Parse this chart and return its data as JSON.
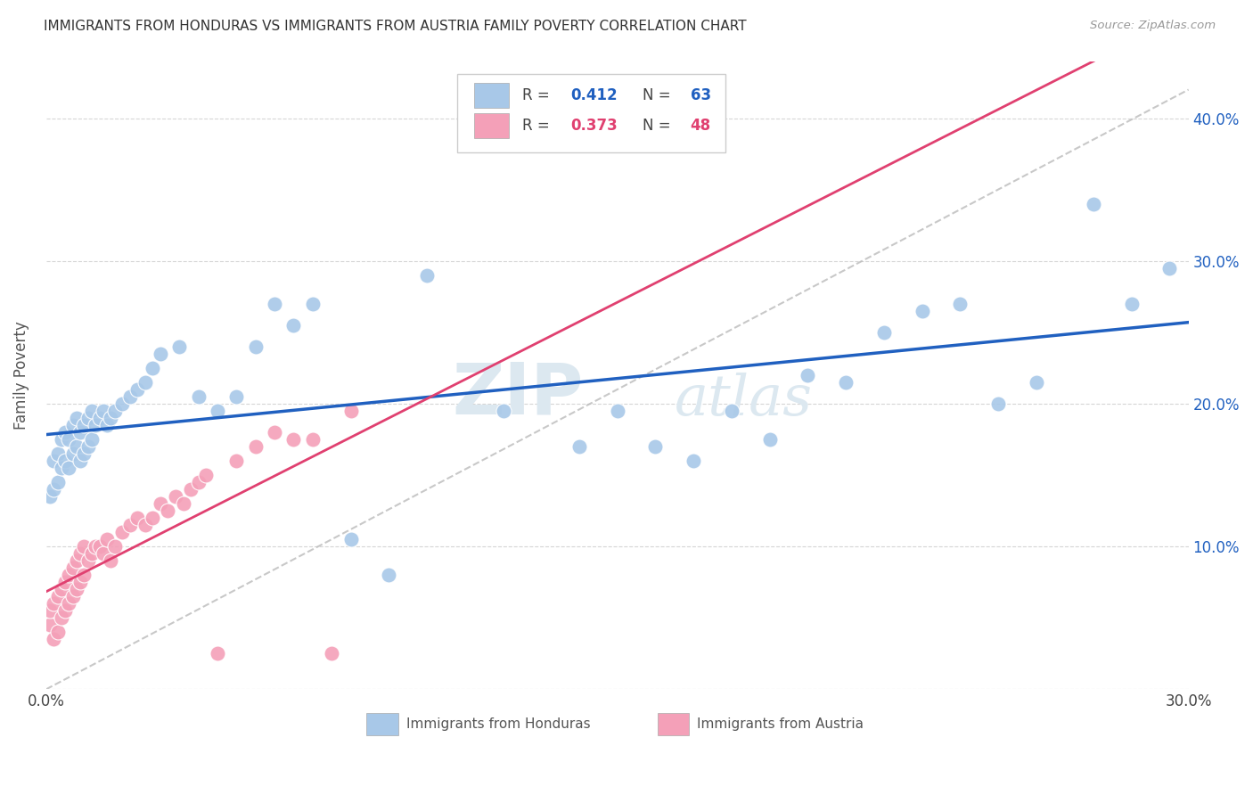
{
  "title": "IMMIGRANTS FROM HONDURAS VS IMMIGRANTS FROM AUSTRIA FAMILY POVERTY CORRELATION CHART",
  "source": "Source: ZipAtlas.com",
  "ylabel": "Family Poverty",
  "xlim": [
    0.0,
    0.3
  ],
  "ylim": [
    0.0,
    0.44
  ],
  "x_tick_positions": [
    0.0,
    0.05,
    0.1,
    0.15,
    0.2,
    0.25,
    0.3
  ],
  "x_tick_labels": [
    "0.0%",
    "",
    "",
    "",
    "",
    "",
    "30.0%"
  ],
  "y_tick_positions": [
    0.0,
    0.1,
    0.2,
    0.3,
    0.4
  ],
  "y_tick_labels": [
    "",
    "10.0%",
    "20.0%",
    "30.0%",
    "40.0%"
  ],
  "legend_r1": "0.412",
  "legend_n1": "63",
  "legend_r2": "0.373",
  "legend_n2": "48",
  "color_blue": "#A8C8E8",
  "color_pink": "#F4A0B8",
  "line_blue": "#2060C0",
  "line_pink": "#E04070",
  "line_gray": "#BBBBBB",
  "watermark_zip": "ZIP",
  "watermark_atlas": "atlas",
  "honduras_x": [
    0.001,
    0.002,
    0.002,
    0.003,
    0.003,
    0.004,
    0.004,
    0.005,
    0.005,
    0.006,
    0.006,
    0.007,
    0.007,
    0.008,
    0.008,
    0.009,
    0.009,
    0.01,
    0.01,
    0.011,
    0.011,
    0.012,
    0.012,
    0.013,
    0.014,
    0.015,
    0.016,
    0.017,
    0.018,
    0.02,
    0.022,
    0.024,
    0.026,
    0.028,
    0.03,
    0.035,
    0.04,
    0.045,
    0.05,
    0.055,
    0.06,
    0.065,
    0.07,
    0.08,
    0.09,
    0.1,
    0.12,
    0.14,
    0.16,
    0.18,
    0.2,
    0.22,
    0.24,
    0.26,
    0.275,
    0.285,
    0.295,
    0.15,
    0.17,
    0.19,
    0.21,
    0.23,
    0.25
  ],
  "honduras_y": [
    0.135,
    0.14,
    0.16,
    0.145,
    0.165,
    0.155,
    0.175,
    0.16,
    0.18,
    0.155,
    0.175,
    0.165,
    0.185,
    0.17,
    0.19,
    0.16,
    0.18,
    0.165,
    0.185,
    0.17,
    0.19,
    0.175,
    0.195,
    0.185,
    0.19,
    0.195,
    0.185,
    0.19,
    0.195,
    0.2,
    0.205,
    0.21,
    0.215,
    0.225,
    0.235,
    0.24,
    0.205,
    0.195,
    0.205,
    0.24,
    0.27,
    0.255,
    0.27,
    0.105,
    0.08,
    0.29,
    0.195,
    0.17,
    0.17,
    0.195,
    0.22,
    0.25,
    0.27,
    0.215,
    0.34,
    0.27,
    0.295,
    0.195,
    0.16,
    0.175,
    0.215,
    0.265,
    0.2
  ],
  "austria_x": [
    0.001,
    0.001,
    0.002,
    0.002,
    0.003,
    0.003,
    0.004,
    0.004,
    0.005,
    0.005,
    0.006,
    0.006,
    0.007,
    0.007,
    0.008,
    0.008,
    0.009,
    0.009,
    0.01,
    0.01,
    0.011,
    0.012,
    0.013,
    0.014,
    0.015,
    0.016,
    0.017,
    0.018,
    0.02,
    0.022,
    0.024,
    0.026,
    0.028,
    0.03,
    0.032,
    0.034,
    0.036,
    0.038,
    0.04,
    0.042,
    0.045,
    0.05,
    0.055,
    0.06,
    0.065,
    0.07,
    0.075,
    0.08
  ],
  "austria_y": [
    0.045,
    0.055,
    0.035,
    0.06,
    0.04,
    0.065,
    0.05,
    0.07,
    0.055,
    0.075,
    0.06,
    0.08,
    0.065,
    0.085,
    0.07,
    0.09,
    0.075,
    0.095,
    0.08,
    0.1,
    0.09,
    0.095,
    0.1,
    0.1,
    0.095,
    0.105,
    0.09,
    0.1,
    0.11,
    0.115,
    0.12,
    0.115,
    0.12,
    0.13,
    0.125,
    0.135,
    0.13,
    0.14,
    0.145,
    0.15,
    0.025,
    0.16,
    0.17,
    0.18,
    0.175,
    0.175,
    0.025,
    0.195
  ]
}
